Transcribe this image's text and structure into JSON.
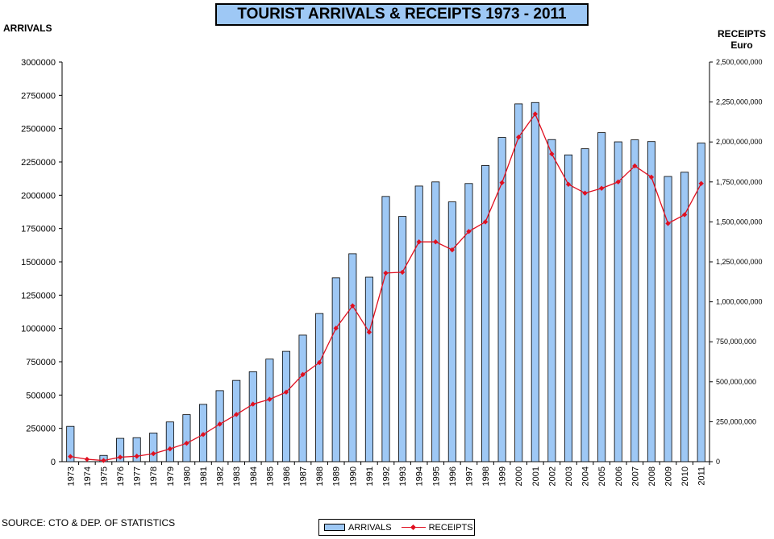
{
  "title": "TOURIST ARRIVALS  & RECEIPTS 1973 - 2011",
  "y_left_label": "ARRIVALS",
  "y_right_label_line1": "RECEIPTS",
  "y_right_label_line2": "Euro",
  "source": "SOURCE: CTO  & DEP. OF STATISTICS",
  "legend": {
    "arrivals": "ARRIVALS",
    "receipts": "RECEIPTS"
  },
  "colors": {
    "bar_fill": "#9ec8f5",
    "line": "#e01020"
  },
  "chart_data": {
    "type": "bar",
    "categories": [
      "1973",
      "1974",
      "1975",
      "1976",
      "1977",
      "1978",
      "1979",
      "1980",
      "1981",
      "1982",
      "1983",
      "1984",
      "1985",
      "1986",
      "1987",
      "1988",
      "1989",
      "1990",
      "1991",
      "1992",
      "1993",
      "1994",
      "1995",
      "1996",
      "1997",
      "1998",
      "1999",
      "2000",
      "2001",
      "2002",
      "2003",
      "2004",
      "2005",
      "2006",
      "2007",
      "2008",
      "2009",
      "2010",
      "2011"
    ],
    "series": [
      {
        "name": "ARRIVALS",
        "type": "bar",
        "axis": "left",
        "values": [
          265000,
          0,
          47000,
          175000,
          180000,
          215000,
          298000,
          353000,
          430000,
          533000,
          610000,
          675000,
          770000,
          828000,
          950000,
          1112000,
          1380000,
          1561000,
          1385000,
          1991000,
          1841000,
          2069000,
          2100000,
          1950000,
          2088000,
          2223000,
          2434000,
          2686000,
          2696000,
          2418000,
          2303000,
          2349000,
          2470000,
          2401000,
          2416000,
          2403000,
          2141000,
          2173000,
          2392000
        ]
      },
      {
        "name": "RECEIPTS",
        "type": "line",
        "axis": "right",
        "values": [
          32000000,
          15000000,
          7000000,
          28000000,
          34000000,
          50000000,
          80000000,
          115000000,
          170000000,
          235000000,
          295000000,
          360000000,
          390000000,
          435000000,
          545000000,
          620000000,
          835000000,
          975000000,
          810000000,
          1180000000,
          1185000000,
          1375000000,
          1375000000,
          1325000000,
          1440000000,
          1500000000,
          1745000000,
          2030000000,
          2175000000,
          1925000000,
          1735000000,
          1680000000,
          1710000000,
          1750000000,
          1850000000,
          1780000000,
          1490000000,
          1545000000,
          1740000000
        ]
      }
    ],
    "y_left": {
      "min": 0,
      "max": 3000000,
      "step": 250000,
      "ticks": [
        "0",
        "250000",
        "500000",
        "750000",
        "1000000",
        "1250000",
        "1500000",
        "1750000",
        "2000000",
        "2250000",
        "2500000",
        "2750000",
        "3000000"
      ]
    },
    "y_right": {
      "min": 0,
      "max": 2500000000,
      "step": 250000000,
      "ticks": [
        "0",
        "250,000,000",
        "500,000,000",
        "750,000,000",
        "1,000,000,000",
        "1,250,000,000",
        "1,500,000,000",
        "1,750,000,000",
        "2,000,000,000",
        "2,250,000,000",
        "2,500,000,000"
      ]
    },
    "grid": false,
    "legend_position": "bottom"
  }
}
